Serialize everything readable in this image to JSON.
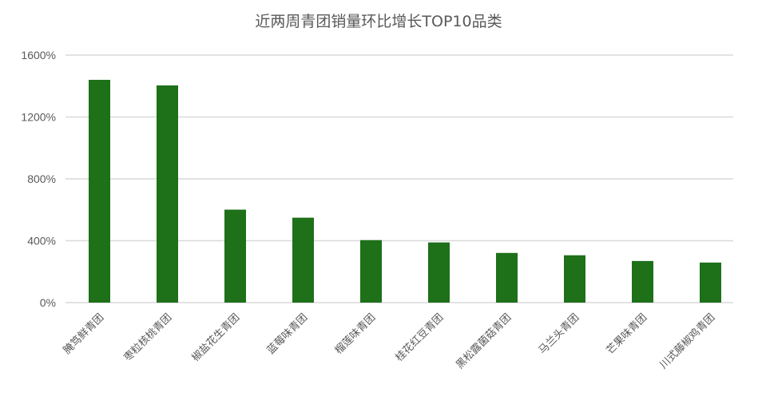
{
  "chart_data": {
    "type": "bar",
    "title": "近两周青团销量环比增长TOP10品类",
    "xlabel": "",
    "ylabel": "",
    "categories": [
      "腌笃鲜青团",
      "枣粒核桃青团",
      "椒盐花生青团",
      "蓝莓味青团",
      "榴莲味青团",
      "桂花红豆青团",
      "黑松露菌菇青团",
      "马兰头青团",
      "芒果味青团",
      "川式藤椒鸡青团"
    ],
    "values": [
      1440,
      1404,
      601,
      549,
      404,
      389,
      321,
      306,
      269,
      259
    ],
    "unit": "%",
    "ylim": [
      0,
      1600
    ],
    "yticks": [
      0,
      400,
      800,
      1200,
      1600
    ],
    "ytick_labels": [
      "0%",
      "400%",
      "800%",
      "1200%",
      "1600%"
    ],
    "grid": true,
    "legend": "none",
    "colors": {
      "bar": "#1e7019",
      "grid": "#d9d9d9",
      "text": "#595959"
    }
  }
}
